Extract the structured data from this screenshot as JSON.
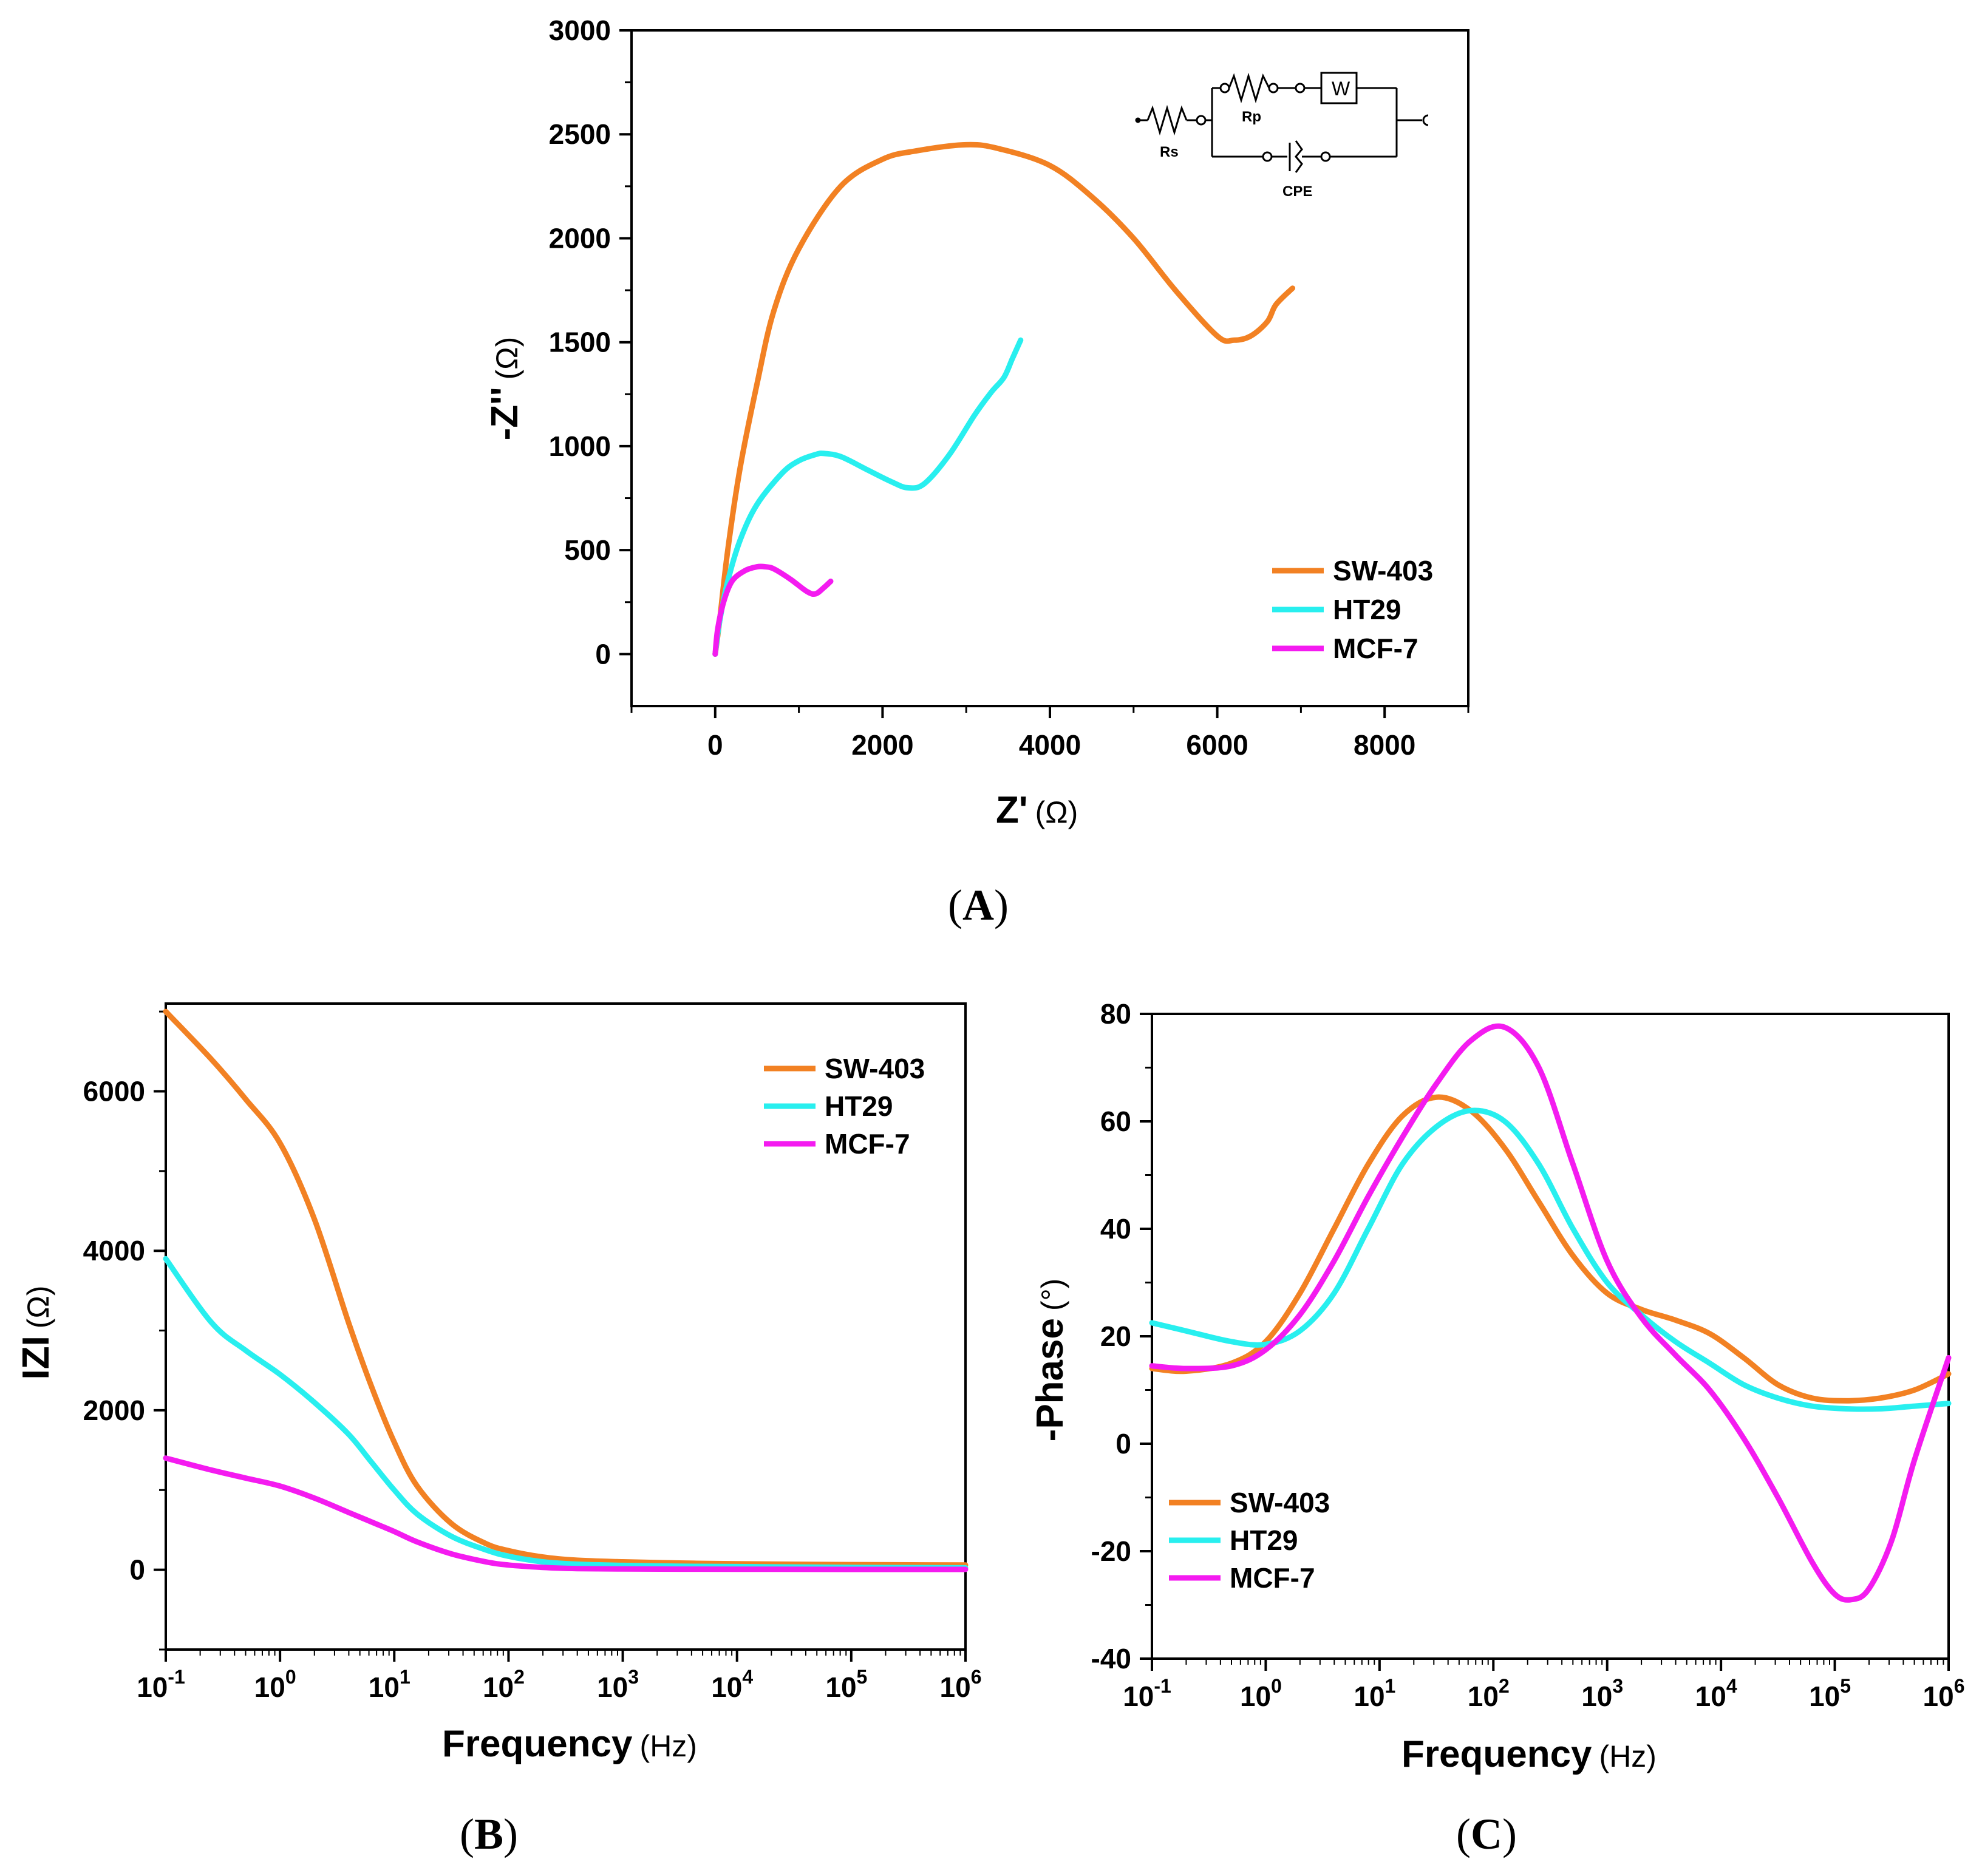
{
  "colors": {
    "SW-403": "#F28123",
    "HT29": "#28EFEF",
    "MCF-7": "#F41BF0",
    "axis": "#000000"
  },
  "chart_data": [
    {
      "id": "A",
      "panel_label": "A",
      "type": "line",
      "subtype": "nyquist",
      "xlabel": "Z'",
      "xunit": "(Ω)",
      "ylabel": "-Z''",
      "yunit": "(Ω)",
      "xlim": [
        -1000,
        9000
      ],
      "ylim": [
        -250,
        3000
      ],
      "xticks": [
        0,
        2000,
        4000,
        6000,
        8000
      ],
      "yticks": [
        0,
        500,
        1000,
        1500,
        2000,
        2500,
        3000
      ],
      "legend_position": "bottom-right",
      "inset": {
        "type": "equivalent-circuit",
        "labels": {
          "rs": "Rs",
          "rp": "Rp",
          "w": "W",
          "cpe": "CPE"
        }
      },
      "series": [
        {
          "name": "SW-403",
          "color": "#F28123",
          "x": [
            0,
            50,
            150,
            300,
            500,
            700,
            1000,
            1500,
            2000,
            2400,
            3000,
            3400,
            4000,
            4500,
            5000,
            5500,
            6000,
            6200,
            6400,
            6600,
            6700,
            6900
          ],
          "y": [
            0,
            150,
            500,
            900,
            1300,
            1650,
            1950,
            2250,
            2380,
            2420,
            2450,
            2430,
            2350,
            2200,
            2000,
            1750,
            1530,
            1510,
            1530,
            1600,
            1680,
            1760
          ]
        },
        {
          "name": "HT29",
          "color": "#28EFEF",
          "x": [
            0,
            50,
            150,
            300,
            500,
            800,
            1000,
            1200,
            1300,
            1500,
            1800,
            2100,
            2300,
            2500,
            2800,
            3100,
            3300,
            3450,
            3550,
            3650
          ],
          "y": [
            0,
            150,
            350,
            550,
            720,
            870,
            930,
            960,
            965,
            950,
            890,
            830,
            800,
            820,
            960,
            1150,
            1260,
            1330,
            1420,
            1510
          ]
        },
        {
          "name": "MCF-7",
          "color": "#F41BF0",
          "x": [
            0,
            30,
            100,
            200,
            350,
            500,
            600,
            700,
            900,
            1100,
            1200,
            1300,
            1380
          ],
          "y": [
            0,
            120,
            250,
            350,
            400,
            420,
            420,
            410,
            360,
            300,
            290,
            320,
            350
          ]
        }
      ]
    },
    {
      "id": "B",
      "panel_label": "B",
      "type": "line",
      "subtype": "bode-magnitude",
      "xlabel": "Frequency",
      "xunit": "(Hz)",
      "ylabel": "IZI",
      "yunit": "(Ω)",
      "xscale": "log",
      "xlim_log10": [
        -1,
        6
      ],
      "ylim": [
        -1000,
        7100
      ],
      "xticks": [
        "10-1",
        "100",
        "101",
        "102",
        "103",
        "104",
        "105",
        "106"
      ],
      "yticks": [
        0,
        2000,
        4000,
        6000
      ],
      "legend_position": "top-right",
      "series": [
        {
          "name": "SW-403",
          "color": "#F28123",
          "log10_freq": [
            -1,
            -0.6,
            -0.3,
            0,
            0.3,
            0.6,
            0.8,
            1,
            1.2,
            1.5,
            1.8,
            2,
            2.3,
            2.6,
            3,
            3.5,
            4,
            5,
            6
          ],
          "values": [
            7000,
            6400,
            5900,
            5350,
            4400,
            3100,
            2300,
            1600,
            1050,
            580,
            330,
            240,
            160,
            120,
            100,
            85,
            75,
            65,
            60
          ]
        },
        {
          "name": "HT29",
          "color": "#28EFEF",
          "log10_freq": [
            -1,
            -0.6,
            -0.3,
            0,
            0.3,
            0.6,
            0.8,
            1,
            1.2,
            1.5,
            1.8,
            2,
            2.3,
            2.6,
            3,
            3.5,
            4,
            5,
            6
          ],
          "values": [
            3900,
            3100,
            2750,
            2450,
            2100,
            1700,
            1350,
            1000,
            700,
            420,
            250,
            170,
            100,
            70,
            55,
            45,
            40,
            30,
            25
          ]
        },
        {
          "name": "MCF-7",
          "color": "#F41BF0",
          "log10_freq": [
            -1,
            -0.6,
            -0.3,
            0,
            0.3,
            0.6,
            0.8,
            1,
            1.2,
            1.5,
            1.8,
            2,
            2.3,
            2.6,
            3,
            3.5,
            4,
            5,
            6
          ],
          "values": [
            1400,
            1250,
            1150,
            1050,
            900,
            720,
            600,
            480,
            350,
            200,
            100,
            60,
            30,
            15,
            10,
            8,
            7,
            5,
            5
          ]
        }
      ]
    },
    {
      "id": "C",
      "panel_label": "C",
      "type": "line",
      "subtype": "bode-phase",
      "xlabel": "Frequency",
      "xunit": "(Hz)",
      "ylabel": "-Phase",
      "yunit": "(°)",
      "xscale": "log",
      "xlim_log10": [
        -1,
        6
      ],
      "ylim": [
        -40,
        80
      ],
      "xticks": [
        "10-1",
        "100",
        "101",
        "102",
        "103",
        "104",
        "105",
        "106"
      ],
      "yticks": [
        -40,
        -20,
        0,
        20,
        40,
        60,
        80
      ],
      "legend_position": "bottom-left",
      "series": [
        {
          "name": "SW-403",
          "color": "#F28123",
          "log10_freq": [
            -1,
            -0.7,
            -0.3,
            0,
            0.3,
            0.6,
            0.9,
            1.2,
            1.5,
            1.8,
            2.1,
            2.4,
            2.7,
            3,
            3.3,
            3.6,
            3.9,
            4.2,
            4.5,
            4.8,
            5.1,
            5.4,
            5.7,
            6
          ],
          "values": [
            14,
            13.5,
            15,
            19,
            28,
            40,
            52,
            61,
            64.5,
            62,
            55,
            45,
            35,
            28,
            25,
            23,
            20.5,
            16,
            11,
            8.5,
            8,
            8.5,
            10,
            13
          ]
        },
        {
          "name": "HT29",
          "color": "#28EFEF",
          "log10_freq": [
            -1,
            -0.7,
            -0.3,
            0,
            0.3,
            0.6,
            0.9,
            1.2,
            1.5,
            1.8,
            2.1,
            2.4,
            2.7,
            3,
            3.3,
            3.6,
            3.9,
            4.2,
            4.5,
            4.8,
            5.1,
            5.4,
            5.7,
            6
          ],
          "values": [
            22.5,
            21,
            19,
            18.5,
            21,
            28,
            40,
            52,
            59,
            62,
            60,
            52,
            40,
            30,
            24,
            19,
            15,
            11,
            8.5,
            7,
            6.5,
            6.5,
            7,
            7.5
          ]
        },
        {
          "name": "MCF-7",
          "color": "#F41BF0",
          "log10_freq": [
            -1,
            -0.7,
            -0.3,
            0,
            0.3,
            0.6,
            0.9,
            1.2,
            1.5,
            1.8,
            2.1,
            2.4,
            2.7,
            3,
            3.3,
            3.6,
            3.9,
            4.2,
            4.5,
            4.8,
            5,
            5.15,
            5.3,
            5.5,
            5.7,
            6
          ],
          "values": [
            14.5,
            14,
            14.5,
            17.5,
            24,
            34,
            46,
            57,
            67,
            75,
            77.5,
            70,
            52,
            34,
            23.5,
            16.5,
            10,
            1,
            -10,
            -22,
            -28,
            -29,
            -27,
            -18,
            -3,
            16
          ]
        }
      ]
    }
  ]
}
